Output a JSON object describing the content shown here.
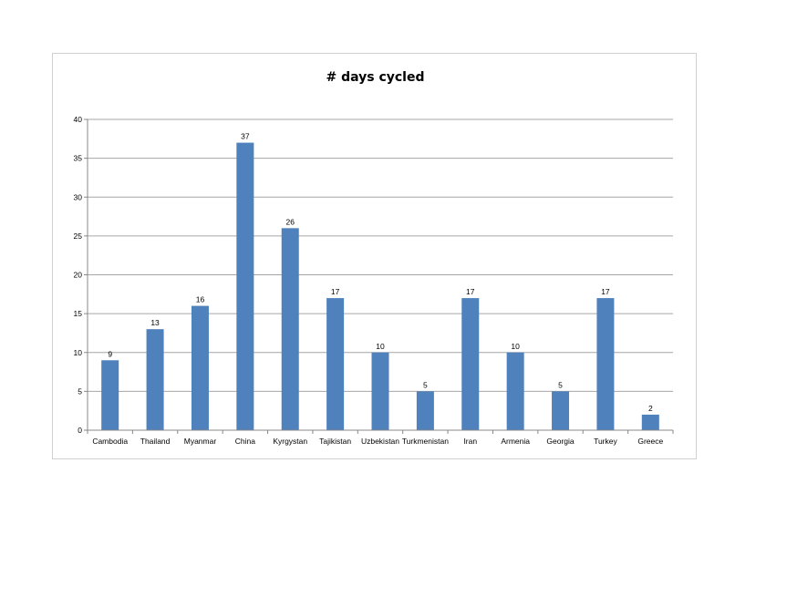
{
  "chart_data": {
    "type": "bar",
    "title": "# days cycled",
    "xlabel": "",
    "ylabel": "",
    "categories": [
      "Cambodia",
      "Thailand",
      "Myanmar",
      "China",
      "Kyrgystan",
      "Tajikistan",
      "Uzbekistan",
      "Turkmenistan",
      "Iran",
      "Armenia",
      "Georgia",
      "Turkey",
      "Greece"
    ],
    "values": [
      9,
      13,
      16,
      37,
      26,
      17,
      10,
      5,
      17,
      10,
      5,
      17,
      2
    ],
    "ylim": [
      0,
      40
    ],
    "yticks": [
      "0",
      "5",
      "10",
      "15",
      "20",
      "25",
      "30",
      "35",
      "40"
    ],
    "data_labels": [
      "9",
      "13",
      "16",
      "37",
      "26",
      "17",
      "10",
      "5",
      "17",
      "10",
      "5",
      "17",
      "2"
    ],
    "grid": true,
    "legend": "none",
    "bar_color": "#4f81bd",
    "grid_color": "#a6a6a6"
  }
}
